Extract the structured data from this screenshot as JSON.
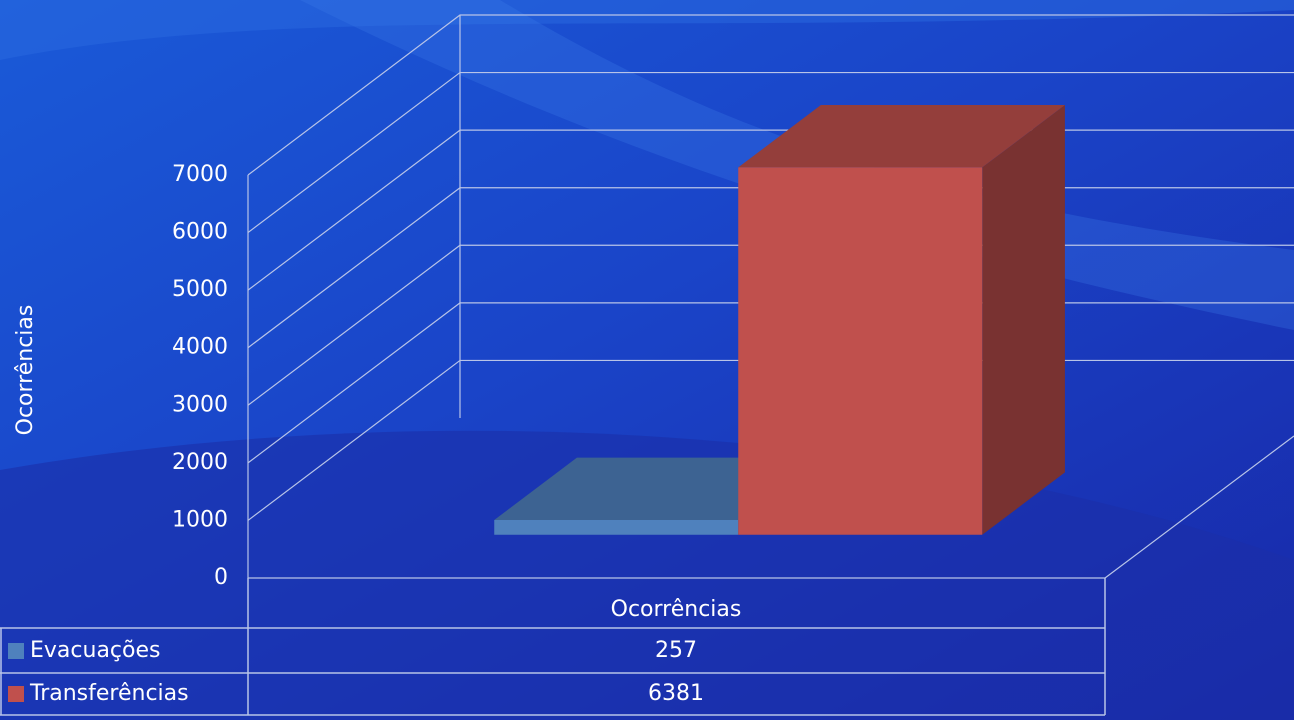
{
  "chart_data": {
    "type": "bar",
    "y_label": "Ocorrências",
    "categories": [
      "Ocorrências"
    ],
    "series": [
      {
        "name": "Evacuações",
        "color": "#4f81bd",
        "values": [
          257
        ]
      },
      {
        "name": "Transferências",
        "color": "#c0504d",
        "values": [
          6381
        ]
      }
    ],
    "ylim": [
      0,
      7000
    ],
    "yticks": [
      0,
      1000,
      2000,
      3000,
      4000,
      5000,
      6000,
      7000
    ],
    "grid": true,
    "legend": "table"
  }
}
